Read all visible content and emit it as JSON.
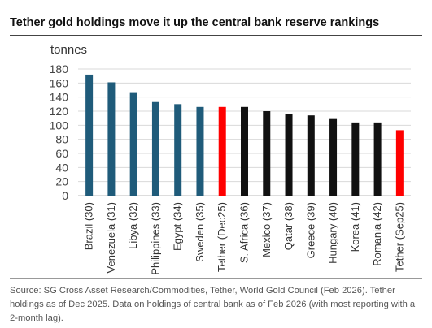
{
  "header": {
    "title": "Tether gold holdings move it up the central bank reserve rankings"
  },
  "footer": {
    "source": "Source: SG Cross Asset Research/Commodities, Tether, World Gold Council (Feb 2026). Tether holdings as of Dec 2025. Data on holdings of central bank as of Feb 2026 (with most reporting with a 2-month lag)."
  },
  "chart_data": {
    "type": "bar",
    "title": "Tether gold holdings move it up the central bank reserve rankings",
    "ylabel": "tonnes",
    "xlabel": "",
    "ylim": [
      0,
      180
    ],
    "yticks": [
      0,
      20,
      40,
      60,
      80,
      100,
      120,
      140,
      160,
      180
    ],
    "grid": true,
    "legend": "none",
    "categories": [
      "Brazil (30)",
      "Venezuela (31)",
      "Libya (32)",
      "Philippines (33)",
      "Egypt (34)",
      "Sweden (35)",
      "Tether (Dec25)",
      "S. Africa (36)",
      "Mexico (37)",
      "Qatar (38)",
      "Greece (39)",
      "Hungary (40)",
      "Korea (41)",
      "Romania (42)",
      "Tether (Sep25)"
    ],
    "values": [
      172,
      161,
      147,
      133,
      130,
      126,
      126,
      126,
      120,
      116,
      114,
      110,
      104,
      104,
      93
    ],
    "colors": [
      "#1f5b7a",
      "#1f5b7a",
      "#1f5b7a",
      "#1f5b7a",
      "#1f5b7a",
      "#1f5b7a",
      "#ff0000",
      "#111111",
      "#111111",
      "#111111",
      "#111111",
      "#111111",
      "#111111",
      "#111111",
      "#ff0000"
    ]
  }
}
